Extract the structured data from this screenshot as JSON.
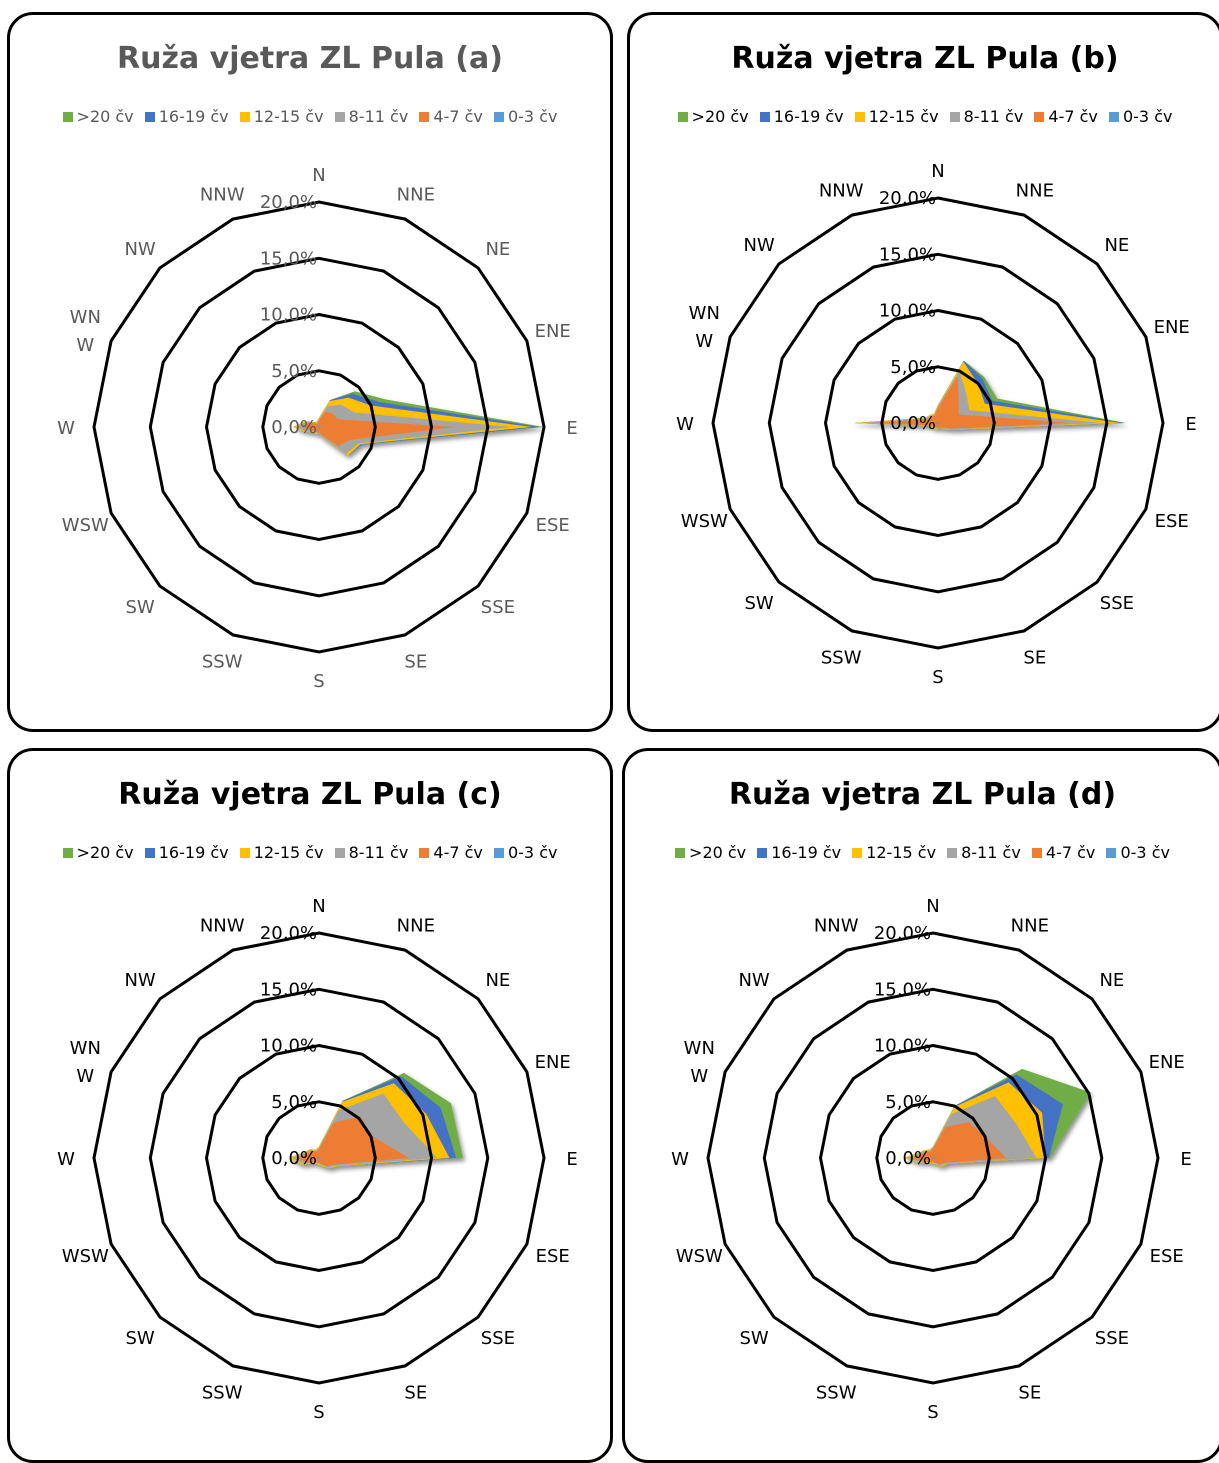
{
  "colors": {
    "gt20": "#70AD47",
    "c16_19": "#4472C4",
    "c12_15": "#FFC000",
    "c8_11": "#A5A5A5",
    "c4_7": "#ED7D31",
    "c0_3": "#5B9BD5",
    "grid": "#000000",
    "label_grey": "#595959",
    "label_black": "#000000"
  },
  "chart_data": [
    {
      "type": "radar",
      "title": "Ruža vjetra ZL Pula (a)",
      "title_color": "grey",
      "directions": [
        "N",
        "NNE",
        "NE",
        "ENE",
        "E",
        "ESE",
        "SSE",
        "SE",
        "S",
        "SSW",
        "SW",
        "WSW",
        "W",
        "WNW",
        "NW",
        "NNW"
      ],
      "direction_labels": [
        "N",
        "NNE",
        "NE",
        "ENE",
        "E",
        "ESE",
        "SSE",
        "SE",
        "S",
        "SSW",
        "SW",
        "WSW",
        "W",
        "WN W",
        "NW",
        "NNW"
      ],
      "r_ticks": [
        "0,0%",
        "5,0%",
        "10,0%",
        "15,0%",
        "20,0%"
      ],
      "r_range": [
        0,
        20
      ],
      "legend": [
        "&gt;20 čv",
        "16-19 čv",
        "12-15 čv",
        "8-11 čv",
        "4-7 čv",
        "0-3 čv"
      ],
      "series": [
        {
          "name": ">20 čv",
          "color_key": "gt20",
          "values": [
            0.8,
            2.6,
            4.5,
            6.4,
            20.0,
            4.1,
            3.6,
            1.1,
            0.6,
            0.7,
            0.7,
            1.2,
            2.3,
            1.3,
            0.6,
            0.5
          ]
        },
        {
          "name": "16-19 čv",
          "color_key": "c16_19",
          "values": [
            0.8,
            2.6,
            4.2,
            5.8,
            19.6,
            4.1,
            3.6,
            1.1,
            0.6,
            0.7,
            0.7,
            1.2,
            2.3,
            1.3,
            0.6,
            0.5
          ]
        },
        {
          "name": "12-15 čv",
          "color_key": "c12_15",
          "values": [
            0.8,
            2.5,
            3.7,
            5.0,
            18.9,
            4.0,
            3.6,
            1.1,
            0.6,
            0.7,
            0.7,
            1.2,
            2.3,
            1.3,
            0.6,
            0.5
          ]
        },
        {
          "name": "8-11 čv",
          "color_key": "c8_11",
          "values": [
            0.7,
            2.0,
            2.8,
            3.4,
            17.1,
            3.8,
            3.4,
            1.0,
            0.6,
            0.6,
            0.6,
            1.1,
            2.0,
            1.2,
            0.5,
            0.4
          ]
        },
        {
          "name": "4-7 čv",
          "color_key": "c4_7",
          "values": [
            0.6,
            1.5,
            1.7,
            1.8,
            12.0,
            3.0,
            2.4,
            0.8,
            0.5,
            0.5,
            0.5,
            0.8,
            1.5,
            1.0,
            0.4,
            0.3
          ]
        },
        {
          "name": "0-3 čv",
          "color_key": "c0_3",
          "values": [
            0.1,
            0.1,
            0.1,
            0.1,
            0.6,
            0.1,
            0.1,
            0.1,
            0.1,
            0.1,
            0.1,
            0.1,
            0.1,
            0.1,
            0.1,
            0.1
          ]
        }
      ]
    },
    {
      "type": "radar",
      "title": "Ruža vjetra ZL Pula (b)",
      "title_color": "black",
      "directions": [
        "N",
        "NNE",
        "NE",
        "ENE",
        "E",
        "ESE",
        "SSE",
        "SE",
        "S",
        "SSW",
        "SW",
        "WSW",
        "W",
        "WNW",
        "NW",
        "NNW"
      ],
      "direction_labels": [
        "N",
        "NNE",
        "NE",
        "ENE",
        "E",
        "ESE",
        "SSE",
        "SE",
        "S",
        "SSW",
        "SW",
        "WSW",
        "W",
        "WN W",
        "NW",
        "NNW"
      ],
      "r_ticks": [
        "0,0%",
        "5,0%",
        "10,0%",
        "15,0%",
        "20,0%"
      ],
      "r_range": [
        0,
        20
      ],
      "legend": [
        "&gt;20 čv",
        "16-19 čv",
        "12-15 čv",
        "8-11 čv",
        "4-7 čv",
        "0-3 čv"
      ],
      "series": [
        {
          "name": ">20 čv",
          "color_key": "gt20",
          "values": [
            1.6,
            6.0,
            5.8,
            5.7,
            16.7,
            1.6,
            0.8,
            0.5,
            0.5,
            0.6,
            0.6,
            0.8,
            7.5,
            1.2,
            1.0,
            0.9
          ]
        },
        {
          "name": "16-19 čv",
          "color_key": "c16_19",
          "values": [
            1.6,
            6.0,
            5.6,
            5.2,
            16.6,
            1.6,
            0.8,
            0.5,
            0.5,
            0.6,
            0.6,
            0.8,
            7.5,
            1.2,
            1.0,
            0.9
          ]
        },
        {
          "name": "12-15 čv",
          "color_key": "c12_15",
          "values": [
            1.6,
            5.9,
            5.0,
            4.5,
            16.2,
            1.6,
            0.8,
            0.5,
            0.5,
            0.6,
            0.6,
            0.8,
            7.5,
            1.2,
            1.0,
            0.9
          ]
        },
        {
          "name": "8-11 čv",
          "color_key": "c8_11",
          "values": [
            1.5,
            5.0,
            3.6,
            3.0,
            14.5,
            1.5,
            0.7,
            0.5,
            0.5,
            0.5,
            0.5,
            0.7,
            6.8,
            1.1,
            0.9,
            0.8
          ]
        },
        {
          "name": "4-7 čv",
          "color_key": "c4_7",
          "values": [
            1.3,
            4.5,
            2.6,
            2.0,
            11.8,
            1.3,
            0.6,
            0.4,
            0.4,
            0.4,
            0.4,
            0.6,
            5.5,
            0.9,
            0.8,
            0.7
          ]
        },
        {
          "name": "0-3 čv",
          "color_key": "c0_3",
          "values": [
            0.1,
            0.1,
            0.1,
            0.1,
            0.3,
            0.1,
            0.1,
            0.1,
            0.1,
            0.1,
            0.1,
            0.1,
            0.2,
            0.1,
            0.1,
            0.1
          ]
        }
      ]
    },
    {
      "type": "radar",
      "title": "Ruža vjetra ZL Pula (c)",
      "title_color": "black",
      "directions": [
        "N",
        "NNE",
        "NE",
        "ENE",
        "E",
        "ESE",
        "SSE",
        "SE",
        "S",
        "SSW",
        "SW",
        "WSW",
        "W",
        "WNW",
        "NW",
        "NNW"
      ],
      "direction_labels": [
        "N",
        "NNE",
        "NE",
        "ENE",
        "E",
        "ESE",
        "SSE",
        "SE",
        "S",
        "SSW",
        "SW",
        "WSW",
        "W",
        "WN W",
        "NW",
        "NNW"
      ],
      "r_ticks": [
        "0,0%",
        "5,0%",
        "10,0%",
        "15,0%",
        "20,0%"
      ],
      "r_range": [
        0,
        20
      ],
      "legend": [
        "&gt;20 čv",
        "16-19 čv",
        "12-15 čv",
        "8-11 čv",
        "4-7 čv",
        "0-3 čv"
      ],
      "series": [
        {
          "name": ">20 čv",
          "color_key": "gt20",
          "values": [
            1.0,
            5.5,
            10.7,
            12.7,
            12.8,
            1.9,
            1.3,
            0.8,
            0.6,
            0.6,
            0.7,
            1.6,
            2.7,
            1.4,
            1.1,
            0.8
          ]
        },
        {
          "name": "16-19 čv",
          "color_key": "c16_19",
          "values": [
            1.0,
            5.5,
            10.3,
            11.7,
            12.2,
            1.9,
            1.3,
            0.8,
            0.6,
            0.6,
            0.7,
            1.6,
            2.7,
            1.4,
            1.1,
            0.8
          ]
        },
        {
          "name": "12-15 čv",
          "color_key": "c12_15",
          "values": [
            1.0,
            5.4,
            9.4,
            10.3,
            11.6,
            1.9,
            1.3,
            0.8,
            0.6,
            0.6,
            0.7,
            1.6,
            2.7,
            1.4,
            1.1,
            0.8
          ]
        },
        {
          "name": "8-11 čv",
          "color_key": "c8_11",
          "values": [
            0.9,
            4.6,
            8.1,
            8.2,
            10.5,
            1.8,
            1.2,
            0.7,
            0.5,
            0.5,
            0.6,
            1.4,
            2.4,
            1.3,
            1.0,
            0.7
          ]
        },
        {
          "name": "4-7 čv",
          "color_key": "c4_7",
          "values": [
            0.8,
            3.4,
            5.2,
            5.1,
            8.0,
            1.5,
            1.0,
            0.6,
            0.4,
            0.4,
            0.5,
            1.1,
            1.9,
            1.1,
            0.9,
            0.6
          ]
        },
        {
          "name": "0-3 čv",
          "color_key": "c0_3",
          "values": [
            0.1,
            0.1,
            0.1,
            0.1,
            0.2,
            0.1,
            0.1,
            0.1,
            0.1,
            0.1,
            0.1,
            0.1,
            0.1,
            0.1,
            0.1,
            0.1
          ]
        }
      ]
    },
    {
      "type": "radar",
      "title": "Ruža vjetra ZL Pula (d)",
      "title_color": "black",
      "directions": [
        "N",
        "NNE",
        "NE",
        "ENE",
        "E",
        "ESE",
        "SSE",
        "SE",
        "S",
        "SSW",
        "SW",
        "WSW",
        "W",
        "WNW",
        "NW",
        "NNW"
      ],
      "direction_labels": [
        "N",
        "NNE",
        "NE",
        "ENE",
        "E",
        "ESE",
        "SSE",
        "SE",
        "S",
        "SSW",
        "SW",
        "WSW",
        "W",
        "WN W",
        "NW",
        "NNW"
      ],
      "r_ticks": [
        "0,0%",
        "5,0%",
        "10,0%",
        "15,0%",
        "20,0%"
      ],
      "r_range": [
        0,
        20
      ],
      "legend": [
        "&gt;20 čv",
        "16-19 čv",
        "12-15 čv",
        "8-11 čv",
        "4-7 čv",
        "0-3 čv"
      ],
      "series": [
        {
          "name": ">20 čv",
          "color_key": "gt20",
          "values": [
            1.0,
            5.0,
            11.2,
            15.2,
            10.4,
            1.4,
            1.1,
            0.6,
            0.5,
            0.5,
            0.6,
            1.2,
            2.6,
            1.3,
            1.0,
            0.8
          ]
        },
        {
          "name": "16-19 čv",
          "color_key": "c16_19",
          "values": [
            1.0,
            5.0,
            10.5,
            12.5,
            10.3,
            1.4,
            1.1,
            0.6,
            0.5,
            0.5,
            0.6,
            1.2,
            2.6,
            1.3,
            1.0,
            0.8
          ]
        },
        {
          "name": "12-15 čv",
          "color_key": "c12_15",
          "values": [
            1.0,
            4.9,
            9.5,
            10.5,
            10.0,
            1.4,
            1.1,
            0.6,
            0.5,
            0.5,
            0.6,
            1.2,
            2.6,
            1.3,
            1.0,
            0.8
          ]
        },
        {
          "name": "8-11 čv",
          "color_key": "c8_11",
          "values": [
            0.9,
            4.2,
            7.8,
            8.0,
            9.2,
            1.3,
            1.0,
            0.5,
            0.4,
            0.4,
            0.5,
            1.1,
            2.3,
            1.2,
            0.9,
            0.7
          ]
        },
        {
          "name": "4-7 čv",
          "color_key": "c4_7",
          "values": [
            0.8,
            3.0,
            4.5,
            5.0,
            6.5,
            1.1,
            0.8,
            0.4,
            0.4,
            0.4,
            0.4,
            0.9,
            1.8,
            1.0,
            0.8,
            0.6
          ]
        },
        {
          "name": "0-3 čv",
          "color_key": "c0_3",
          "values": [
            0.1,
            0.1,
            0.1,
            0.1,
            0.2,
            0.1,
            0.1,
            0.1,
            0.1,
            0.1,
            0.1,
            0.1,
            0.1,
            0.1,
            0.1,
            0.1
          ]
        }
      ]
    }
  ]
}
